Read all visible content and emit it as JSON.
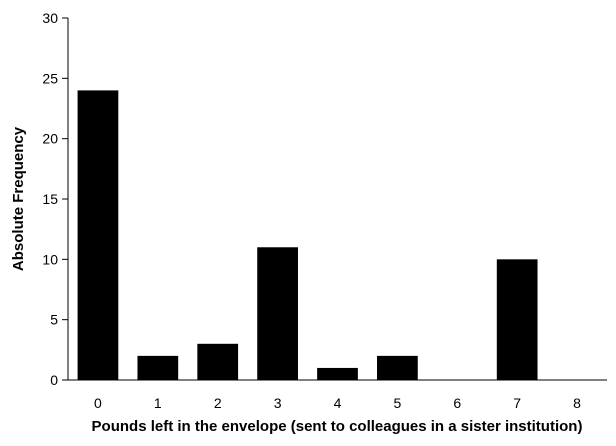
{
  "chart_data": {
    "type": "bar",
    "categories": [
      "0",
      "1",
      "2",
      "3",
      "4",
      "5",
      "6",
      "7",
      "8"
    ],
    "values": [
      24,
      2,
      3,
      11,
      1,
      2,
      0,
      10,
      0
    ],
    "title": "",
    "xlabel": "Pounds left in the envelope (sent to colleagues in a sister institution)",
    "ylabel": "Absolute Frequency",
    "ylim": [
      0,
      30
    ],
    "yticks": [
      0,
      5,
      10,
      15,
      20,
      25,
      30
    ],
    "grid": false,
    "legend": "none",
    "bar_color": "#000000"
  }
}
